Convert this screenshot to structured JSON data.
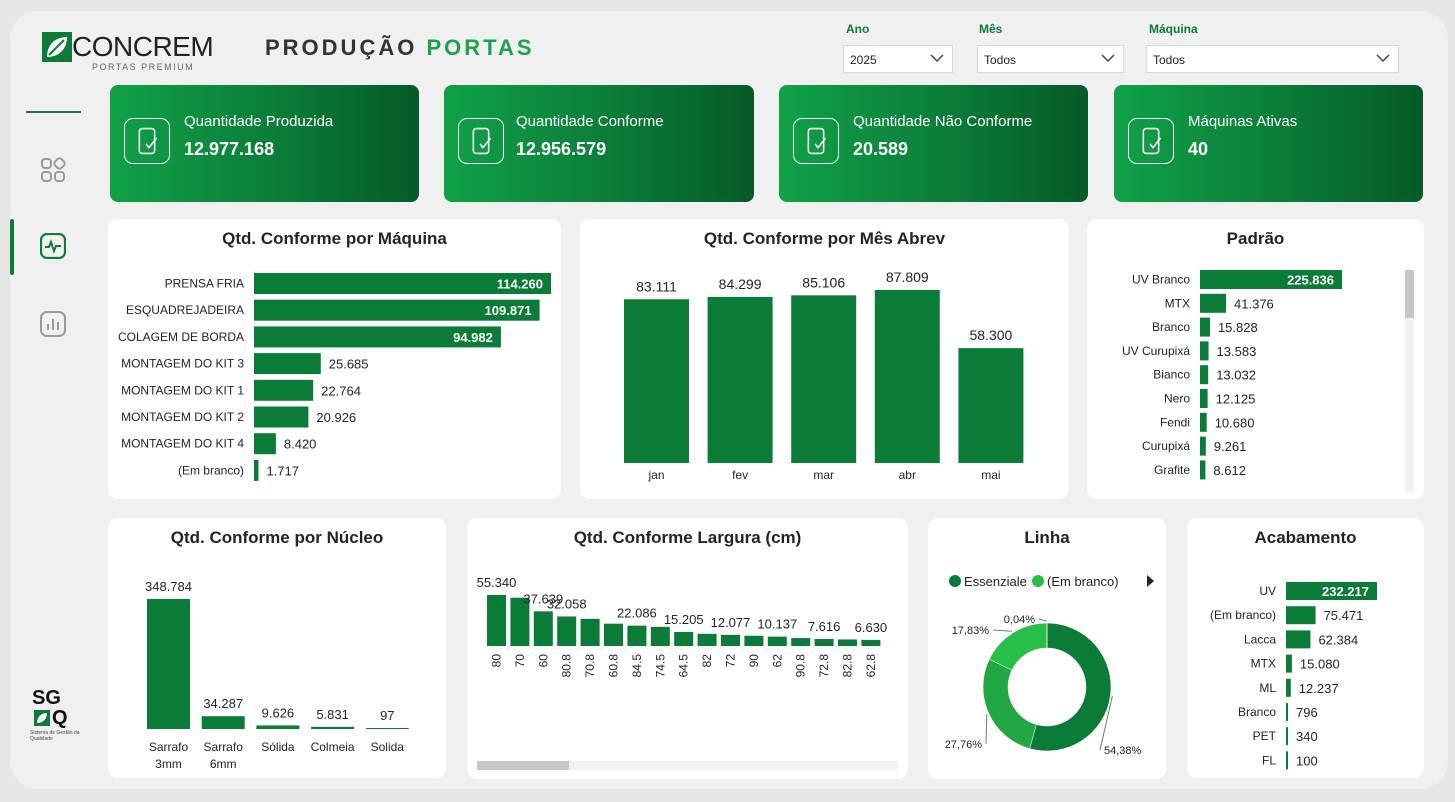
{
  "header": {
    "logo_name": "CONCREM",
    "logo_sub": "PORTAS PREMIUM",
    "title_part1": "PRODUÇÃO",
    "title_part2": "PORTAS"
  },
  "filters": {
    "ano": {
      "label": "Ano",
      "value": "2025"
    },
    "mes": {
      "label": "Mês",
      "value": "Todos"
    },
    "maquina": {
      "label": "Máquina",
      "value": "Todos"
    }
  },
  "nav": [
    {
      "icon": "grid-icon"
    },
    {
      "icon": "activity-icon",
      "active": true
    },
    {
      "icon": "bar-chart-icon"
    }
  ],
  "kpis": [
    {
      "label": "Quantidade Produzida",
      "value": "12.977.168"
    },
    {
      "label": "Quantidade Conforme",
      "value": "12.956.579"
    },
    {
      "label": "Quantidade Não Conforme",
      "value": "20.589"
    },
    {
      "label": "Máquinas Ativas",
      "value": "40"
    }
  ],
  "colors": {
    "primary": "#0b7c38",
    "light": "#1fb84a",
    "accent_dark": "#055a27"
  },
  "footer_logo": {
    "line1": "SG",
    "line2": "Q",
    "caption": "Sistema de Gestão da Qualidade"
  },
  "chart_data": [
    {
      "id": "maquina",
      "type": "bar",
      "orientation": "horizontal",
      "title": "Qtd. Conforme por Máquina",
      "categories": [
        "PRENSA FRIA",
        "ESQUADREJADEIRA",
        "COLAGEM DE BORDA",
        "MONTAGEM DO KIT 3",
        "MONTAGEM DO KIT 1",
        "MONTAGEM DO KIT 2",
        "MONTAGEM DO KIT 4",
        "(Em branco)"
      ],
      "values": [
        114260,
        109871,
        94982,
        25685,
        22764,
        20926,
        8420,
        1717
      ],
      "labels": [
        "114.260",
        "109.871",
        "94.982",
        "25.685",
        "22.764",
        "20.926",
        "8.420",
        "1.717"
      ]
    },
    {
      "id": "mes",
      "type": "bar",
      "title": "Qtd. Conforme por Mês Abrev",
      "categories": [
        "jan",
        "fev",
        "mar",
        "abr",
        "mai"
      ],
      "values": [
        83111,
        84299,
        85106,
        87809,
        58300
      ],
      "labels": [
        "83.111",
        "84.299",
        "85.106",
        "87.809",
        "58.300"
      ]
    },
    {
      "id": "padrao",
      "type": "bar",
      "orientation": "horizontal",
      "title": "Padrão",
      "categories": [
        "UV Branco",
        "MTX",
        "Branco",
        "UV Curupixá",
        "Bianco",
        "Nero",
        "Fendi",
        "Curupixá",
        "Grafite"
      ],
      "values": [
        225836,
        41376,
        15828,
        13583,
        13032,
        12125,
        10680,
        9261,
        8612
      ],
      "labels": [
        "225.836",
        "41.376",
        "15.828",
        "13.583",
        "13.032",
        "12.125",
        "10.680",
        "9.261",
        "8.612"
      ]
    },
    {
      "id": "nucleo",
      "type": "bar",
      "title": "Qtd. Conforme por Núcleo",
      "categories": [
        "Sarrafo 3mm",
        "Sarrafo 6mm",
        "Sólida",
        "Colmeia",
        "Solida"
      ],
      "values": [
        348784,
        34287,
        9626,
        5831,
        97
      ],
      "labels": [
        "348.784",
        "34.287",
        "9.626",
        "5.831",
        "97"
      ]
    },
    {
      "id": "largura",
      "type": "bar",
      "title": "Qtd. Conforme Largura (cm)",
      "categories": [
        "80",
        "70",
        "60",
        "80.8",
        "70.8",
        "60.8",
        "84.5",
        "74.5",
        "64.5",
        "82",
        "72",
        "90",
        "62",
        "90.8",
        "72.8",
        "82.8",
        "62.8"
      ],
      "values": [
        55340,
        52400,
        37639,
        32058,
        29500,
        24200,
        22086,
        20800,
        15205,
        13200,
        12077,
        11100,
        10137,
        8600,
        7616,
        7100,
        6630
      ],
      "labels": [
        "55.340",
        "",
        "37.639",
        "32.058",
        "",
        "",
        "22.086",
        "",
        "15.205",
        "",
        "12.077",
        "",
        "10.137",
        "",
        "7.616",
        "",
        "6.630"
      ]
    },
    {
      "id": "linha",
      "type": "pie",
      "title": "Linha",
      "legend": [
        "Essenziale",
        "(Em branco)"
      ],
      "values": [
        54.38,
        27.76,
        17.83,
        0.04
      ],
      "labels": [
        "54,38%",
        "27,76%",
        "17,83%",
        "0,04%"
      ],
      "colors": [
        "#0b7c38",
        "#22a745",
        "#28bf46",
        "#1f8f49"
      ]
    },
    {
      "id": "acabamento",
      "type": "bar",
      "orientation": "horizontal",
      "title": "Acabamento",
      "categories": [
        "UV",
        "(Em branco)",
        "Lacca",
        "MTX",
        "ML",
        "Branco",
        "PET",
        "FL"
      ],
      "values": [
        232217,
        75471,
        62384,
        15080,
        12237,
        796,
        340,
        100
      ],
      "labels": [
        "232.217",
        "75.471",
        "62.384",
        "15.080",
        "12.237",
        "796",
        "340",
        "100"
      ]
    }
  ]
}
